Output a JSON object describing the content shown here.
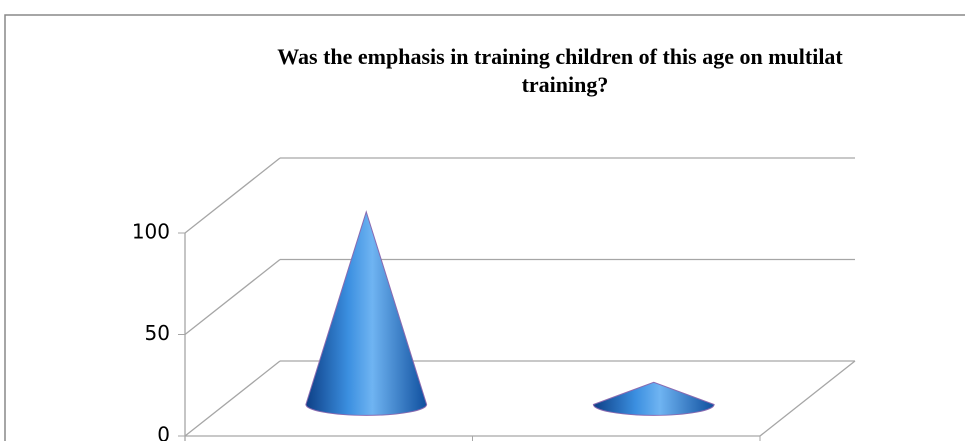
{
  "chart_data": {
    "type": "cone3d",
    "title_lines": [
      "Was the emphasis in training children of this age on multilat",
      "training?"
    ],
    "categories": [
      null,
      null
    ],
    "values": [
      92,
      8
    ],
    "color": "#1f6fc4",
    "ylim": [
      0,
      100
    ],
    "yticks": [
      0,
      50,
      100
    ],
    "grid": true
  }
}
